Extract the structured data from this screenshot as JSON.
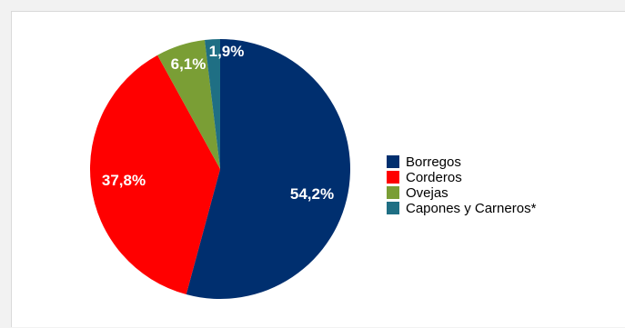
{
  "chart_data": {
    "type": "pie",
    "categories": [
      "Borregos",
      "Corderos",
      "Ovejas",
      "Capones y Carneros*"
    ],
    "values": [
      54.2,
      37.8,
      6.1,
      1.9
    ],
    "labels": [
      "54,2%",
      "37,8%",
      "6,1%",
      "1,9%"
    ],
    "colors": [
      "#002f6f",
      "#ff0000",
      "#7a9e35",
      "#1f6f84"
    ],
    "legend_placement": "right"
  }
}
